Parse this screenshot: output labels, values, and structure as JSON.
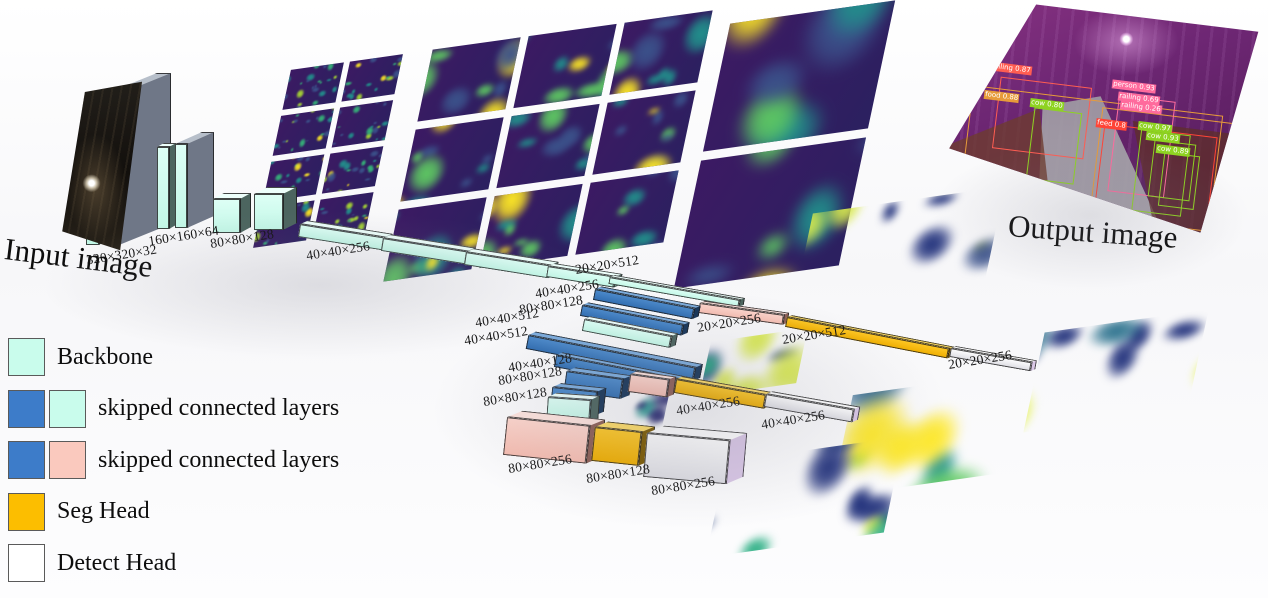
{
  "labels": {
    "input": "Input image",
    "output": "Output image"
  },
  "palette": {
    "backbone": "#c9fcec",
    "skip_blue": "#3d7cc9",
    "skip_pink": "#fac9be",
    "seg": "#fcbe00",
    "detect": "#ffffff"
  },
  "legend": {
    "items": [
      {
        "label": "Backbone",
        "swatches": [
          "backbone"
        ]
      },
      {
        "label": "skipped connected layers",
        "swatches": [
          "skip_blue",
          "backbone"
        ]
      },
      {
        "label": "skipped connected layers",
        "swatches": [
          "skip_blue",
          "skip_pink"
        ]
      },
      {
        "label": "Seg Head",
        "swatches": [
          "seg"
        ]
      },
      {
        "label": "Detect Head",
        "swatches": [
          "detect"
        ]
      }
    ]
  },
  "dimension_labels": [
    "320×320×32",
    "160×160×64",
    "80×80×128",
    "40×40×256",
    "20×20×512",
    "40×40×256",
    "80×80×128",
    "40×40×512",
    "40×40×512",
    "40×40×128",
    "80×80×128",
    "80×80×128",
    "80×80×256",
    "80×80×128",
    "80×80×256",
    "20×20×256",
    "20×20×512",
    "20×20×256",
    "40×40×256",
    "40×40×256"
  ],
  "detections": [
    {
      "label": "railing 0.87",
      "color": "#ff5d52"
    },
    {
      "label": "food 0.88",
      "color": "#e79b3a"
    },
    {
      "label": "cow 0.80",
      "color": "#8ed321"
    },
    {
      "label": "person 0.93",
      "color": "#ff6b9d"
    },
    {
      "label": "railing 0.69",
      "color": "#ff6b9d"
    },
    {
      "label": "railing 0.26",
      "color": "#ff6b9d"
    },
    {
      "label": "feed 0.8",
      "color": "#ff4436"
    },
    {
      "label": "cow 0.97",
      "color": "#8ed321"
    },
    {
      "label": "cow 0.93",
      "color": "#8ed321"
    },
    {
      "label": "cow 0.89",
      "color": "#8ed321"
    }
  ]
}
